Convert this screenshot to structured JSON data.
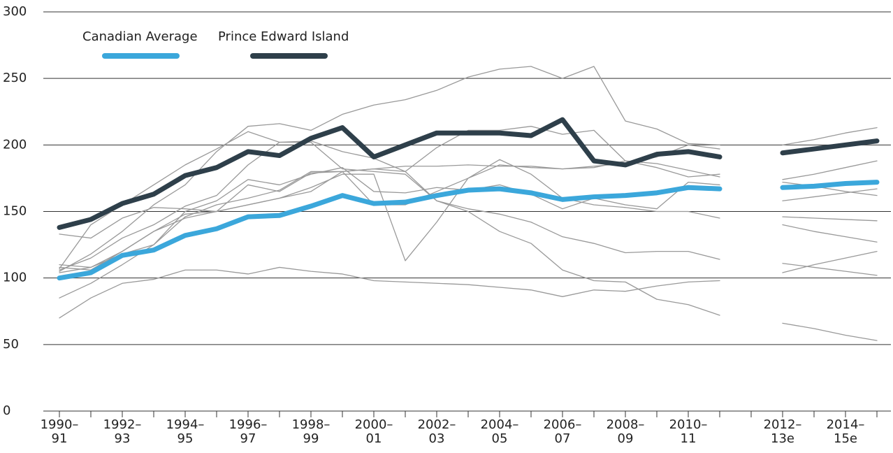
{
  "chart_data": {
    "type": "line",
    "categories": [
      "1990–91",
      null,
      "1992–93",
      null,
      "1994–95",
      null,
      "1996–97",
      null,
      "1998–99",
      null,
      "2000–01",
      null,
      "2002–03",
      null,
      "2004–05",
      null,
      "2006–07",
      null,
      "2008–09",
      null,
      "2010–11",
      null,
      null,
      "2012–13e",
      null,
      "2014–15e",
      null
    ],
    "ylim": [
      0,
      300
    ],
    "yticks": [
      0,
      50,
      100,
      150,
      200,
      250,
      300
    ],
    "grid": true,
    "legend": "top-left",
    "series": [
      {
        "color": "#999999",
        "values": [
          105,
          118,
          135,
          155,
          170,
          195,
          214,
          216,
          211,
          223,
          230,
          234,
          241,
          251,
          257,
          259,
          250,
          259,
          218,
          212,
          201,
          200,
          null,
          200,
          204,
          209,
          213
        ]
      },
      {
        "color": "#999999",
        "values": [
          107,
          140,
          155,
          170,
          185,
          197,
          210,
          202,
          203,
          195,
          190,
          180,
          198,
          211,
          211,
          214,
          208,
          211,
          188,
          183,
          176,
          178,
          null,
          158,
          161,
          164,
          167
        ]
      },
      {
        "color": "#999999",
        "values": [
          133,
          130,
          145,
          153,
          152,
          150,
          170,
          165,
          179,
          180,
          182,
          184,
          184,
          185,
          184,
          184,
          182,
          184,
          186,
          191,
          200,
          197,
          null,
          174,
          178,
          183,
          188
        ]
      },
      {
        "color": "#999999",
        "values": [
          110,
          108,
          118,
          125,
          150,
          158,
          174,
          170,
          178,
          183,
          165,
          164,
          168,
          166,
          170,
          163,
          152,
          160,
          155,
          152,
          172,
          170,
          null,
          172,
          169,
          165,
          162
        ]
      },
      {
        "color": "#999999",
        "values": [
          106,
          115,
          130,
          140,
          154,
          162,
          185,
          202,
          202,
          182,
          180,
          178,
          158,
          152,
          148,
          142,
          131,
          126,
          119,
          120,
          120,
          114,
          null,
          146,
          145,
          144,
          143
        ]
      },
      {
        "color": "#999999",
        "values": [
          104,
          108,
          120,
          135,
          145,
          150,
          155,
          160,
          165,
          180,
          155,
          155,
          165,
          175,
          189,
          178,
          160,
          155,
          153,
          150,
          150,
          145,
          null,
          140,
          135,
          131,
          127
        ]
      },
      {
        "color": "#999999",
        "values": [
          85,
          96,
          110,
          125,
          146,
          155,
          160,
          166,
          180,
          180,
          182,
          180,
          158,
          150,
          135,
          126,
          106,
          98,
          97,
          84,
          80,
          72,
          null,
          111,
          108,
          105,
          102
        ]
      },
      {
        "color": "#999999",
        "values": [
          70,
          85,
          96,
          99,
          106,
          106,
          103,
          108,
          105,
          103,
          98,
          97,
          96,
          95,
          93,
          91,
          86,
          91,
          90,
          94,
          97,
          98,
          null,
          104,
          110,
          115,
          120
        ]
      },
      {
        "color": "#999999",
        "values": [
          108,
          106,
          120,
          135,
          148,
          150,
          155,
          160,
          168,
          178,
          178,
          113,
          142,
          175,
          185,
          183,
          182,
          183,
          188,
          186,
          181,
          176,
          null,
          66,
          62,
          57,
          53
        ]
      },
      {
        "name": "Canadian Average",
        "color": "#3ba7db",
        "values": [
          100,
          104,
          117,
          121,
          132,
          137,
          146,
          147,
          154,
          162,
          156,
          157,
          162,
          166,
          167,
          164,
          159,
          161,
          162,
          164,
          168,
          167,
          null,
          168,
          169,
          171,
          172
        ]
      },
      {
        "name": "Prince Edward Island",
        "color": "#2e3f4a",
        "values": [
          138,
          144,
          156,
          163,
          177,
          183,
          195,
          192,
          205,
          213,
          191,
          200,
          209,
          209,
          209,
          207,
          219,
          188,
          185,
          193,
          195,
          191,
          null,
          194,
          197,
          200,
          203
        ]
      }
    ]
  }
}
